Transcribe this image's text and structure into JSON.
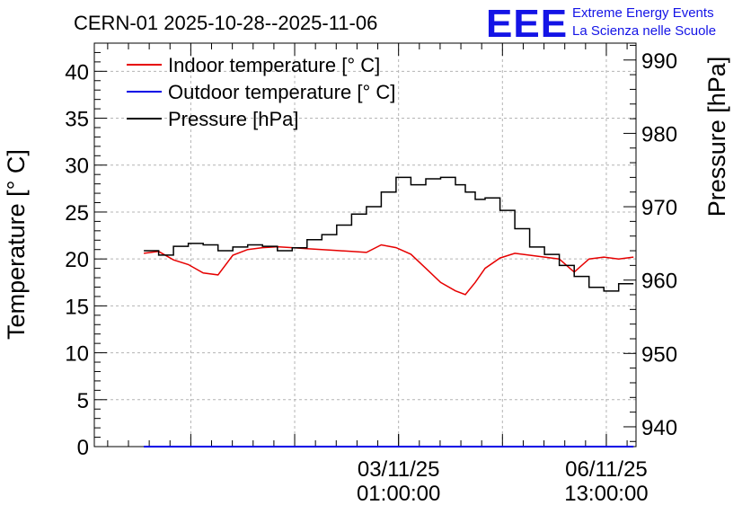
{
  "header": {
    "title": "CERN-01 2025-10-28--2025-11-06",
    "logo_text": "EEE",
    "logo_line1": "Extreme Energy Events",
    "logo_line2": "La Scienza nelle Scuole"
  },
  "chart_data": {
    "type": "line",
    "grid": true,
    "legend_position": "top-left",
    "left_axis": {
      "label": "Temperature [° C]",
      "range": [
        0,
        43
      ],
      "ticks": [
        0,
        5,
        10,
        15,
        20,
        25,
        30,
        35,
        40
      ],
      "tick_labels": [
        "0",
        "5",
        "10",
        "15",
        "20",
        "25",
        "30",
        "35",
        "40"
      ]
    },
    "right_axis": {
      "label": "Pressure [hPa]",
      "range": [
        937.3,
        992.3
      ],
      "ticks": [
        940,
        950,
        960,
        970,
        980,
        990
      ],
      "tick_labels": [
        "940",
        "950",
        "960",
        "970",
        "980",
        "990"
      ]
    },
    "x_axis": {
      "range": [
        "2025-10-28 22:00",
        "2025-11-07 01:00"
      ],
      "tick_labels": [
        {
          "date": "03/11/25",
          "time": "01:00:00",
          "at": "2025-11-03 01:00"
        },
        {
          "date": "06/11/25",
          "time": "13:00:00",
          "at": "2025-11-06 13:00"
        }
      ]
    },
    "series": [
      {
        "name": "Indoor temperature [° C]",
        "color": "#e60000",
        "axis": "left",
        "x": [
          "2025-10-29 18:00",
          "2025-10-30 00:00",
          "2025-10-30 06:00",
          "2025-10-30 12:00",
          "2025-10-30 18:00",
          "2025-10-31 00:00",
          "2025-10-31 06:00",
          "2025-10-31 12:00",
          "2025-10-31 18:00",
          "2025-11-01 00:00",
          "2025-11-01 06:00",
          "2025-11-01 12:00",
          "2025-11-01 18:00",
          "2025-11-02 00:00",
          "2025-11-02 06:00",
          "2025-11-02 12:00",
          "2025-11-02 18:00",
          "2025-11-03 00:00",
          "2025-11-03 06:00",
          "2025-11-03 12:00",
          "2025-11-03 18:00",
          "2025-11-04 00:00",
          "2025-11-04 04:00",
          "2025-11-04 08:00",
          "2025-11-04 12:00",
          "2025-11-04 18:00",
          "2025-11-05 00:00",
          "2025-11-05 06:00",
          "2025-11-05 12:00",
          "2025-11-05 18:00",
          "2025-11-06 00:00",
          "2025-11-06 06:00",
          "2025-11-06 12:00",
          "2025-11-06 18:00",
          "2025-11-07 00:00"
        ],
        "values": [
          20.6,
          20.8,
          19.9,
          19.4,
          18.5,
          18.3,
          20.4,
          21.0,
          21.2,
          21.3,
          21.2,
          21.1,
          21.0,
          20.9,
          20.8,
          20.7,
          21.5,
          21.2,
          20.5,
          19.0,
          17.5,
          16.6,
          16.2,
          17.5,
          19.0,
          20.1,
          20.6,
          20.4,
          20.2,
          20.0,
          18.6,
          20.0,
          20.2,
          20.0,
          20.2
        ]
      },
      {
        "name": "Outdoor temperature [° C]",
        "color": "#0000e6",
        "axis": "left",
        "x": [
          "2025-10-29 18:00",
          "2025-11-07 00:00"
        ],
        "values": [
          0,
          0
        ]
      },
      {
        "name": "Pressure [hPa]",
        "color": "#000000",
        "axis": "right",
        "x": [
          "2025-10-29 18:00",
          "2025-10-30 00:00",
          "2025-10-30 06:00",
          "2025-10-30 12:00",
          "2025-10-30 18:00",
          "2025-10-31 00:00",
          "2025-10-31 06:00",
          "2025-10-31 12:00",
          "2025-10-31 18:00",
          "2025-11-01 00:00",
          "2025-11-01 06:00",
          "2025-11-01 12:00",
          "2025-11-01 18:00",
          "2025-11-02 00:00",
          "2025-11-02 06:00",
          "2025-11-02 12:00",
          "2025-11-02 18:00",
          "2025-11-03 00:00",
          "2025-11-03 06:00",
          "2025-11-03 12:00",
          "2025-11-03 18:00",
          "2025-11-04 00:00",
          "2025-11-04 04:00",
          "2025-11-04 08:00",
          "2025-11-04 12:00",
          "2025-11-04 18:00",
          "2025-11-05 00:00",
          "2025-11-05 06:00",
          "2025-11-05 12:00",
          "2025-11-05 18:00",
          "2025-11-06 00:00",
          "2025-11-06 06:00",
          "2025-11-06 12:00",
          "2025-11-06 18:00",
          "2025-11-07 00:00"
        ],
        "values": [
          964.0,
          963.4,
          964.6,
          965.0,
          964.8,
          964.0,
          964.5,
          964.8,
          964.6,
          964.0,
          964.4,
          965.5,
          966.2,
          967.5,
          969.0,
          970.0,
          972.0,
          974.0,
          973.0,
          973.8,
          974.0,
          973.0,
          972.0,
          971.0,
          971.2,
          969.5,
          967.0,
          964.5,
          963.5,
          962.0,
          960.5,
          959.0,
          958.5,
          959.5,
          959.5
        ]
      }
    ]
  }
}
